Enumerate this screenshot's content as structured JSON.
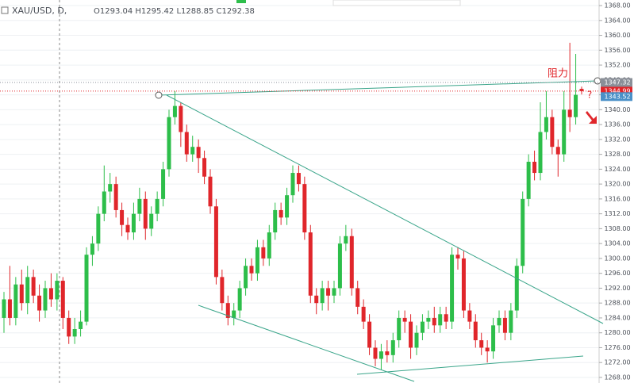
{
  "chart_data": {
    "type": "candlestick",
    "header": {
      "symbol": "XAU/USD, D,",
      "ohlc": "O1293.04 H1295.42 L1288.85 C1292.38"
    },
    "annotations": [
      "阻力",
      "?"
    ],
    "up_color": "#2dbe4a",
    "down_color": "#e0262b",
    "ylim": [
      1266.5,
      1369.5
    ],
    "yticks": [
      {
        "value": 1268,
        "label": "1268.00"
      },
      {
        "value": 1272,
        "label": "1272.00"
      },
      {
        "value": 1276,
        "label": "1276.00"
      },
      {
        "value": 1280,
        "label": "1280.00"
      },
      {
        "value": 1284,
        "label": "1284.00"
      },
      {
        "value": 1288,
        "label": "1288.00"
      },
      {
        "value": 1292,
        "label": "1292.00"
      },
      {
        "value": 1296,
        "label": "1296.00"
      },
      {
        "value": 1300,
        "label": "1300.00"
      },
      {
        "value": 1304,
        "label": "1304.00"
      },
      {
        "value": 1308,
        "label": "1308.00"
      },
      {
        "value": 1312,
        "label": "1312.00"
      },
      {
        "value": 1316,
        "label": "1316.00"
      },
      {
        "value": 1320,
        "label": "1320.00"
      },
      {
        "value": 1324,
        "label": "1324.00"
      },
      {
        "value": 1328,
        "label": "1328.00"
      },
      {
        "value": 1332,
        "label": "1332.00"
      },
      {
        "value": 1336,
        "label": "1336.00"
      },
      {
        "value": 1340,
        "label": "1340.00"
      },
      {
        "value": 1344,
        "label": "1344.00"
      },
      {
        "value": 1348,
        "label": "1348.00"
      },
      {
        "value": 1352,
        "label": "1352.00"
      },
      {
        "value": 1356,
        "label": "1356.00"
      },
      {
        "value": 1360,
        "label": "1360.00"
      },
      {
        "value": 1364,
        "label": "1364.00"
      },
      {
        "value": 1368,
        "label": "1368.00"
      }
    ],
    "grid": true,
    "price_labels": [
      {
        "value": 1347.32,
        "color": "#8a8f98",
        "line": "dotted"
      },
      {
        "value": 1344.99,
        "color": "#e0262b",
        "line": "dotted"
      },
      {
        "value": 1343.52,
        "color": "#4a90c8"
      }
    ],
    "ohlc": [
      [
        1284,
        1291,
        1280,
        1289
      ],
      [
        1289,
        1298,
        1282,
        1284
      ],
      [
        1284,
        1295,
        1282,
        1293
      ],
      [
        1293,
        1297,
        1286,
        1288
      ],
      [
        1288,
        1298,
        1285,
        1295
      ],
      [
        1295,
        1297,
        1288,
        1290
      ],
      [
        1290,
        1293,
        1283,
        1286
      ],
      [
        1286,
        1294,
        1284,
        1292
      ],
      [
        1292,
        1296,
        1287,
        1289
      ],
      [
        1289,
        1296,
        1286,
        1294
      ],
      [
        1294,
        1295,
        1281,
        1284
      ],
      [
        1284,
        1286,
        1277,
        1279
      ],
      [
        1279,
        1284,
        1277,
        1281
      ],
      [
        1281,
        1286,
        1279,
        1283
      ],
      [
        1283,
        1303,
        1282,
        1301
      ],
      [
        1301,
        1306,
        1298,
        1304
      ],
      [
        1304,
        1314,
        1302,
        1312
      ],
      [
        1312,
        1325,
        1310,
        1318
      ],
      [
        1318,
        1323,
        1315,
        1320
      ],
      [
        1320,
        1322,
        1311,
        1313
      ],
      [
        1313,
        1315,
        1306,
        1309
      ],
      [
        1309,
        1311,
        1305,
        1307
      ],
      [
        1307,
        1315,
        1305,
        1312
      ],
      [
        1312,
        1319,
        1310,
        1316
      ],
      [
        1316,
        1318,
        1305,
        1308
      ],
      [
        1308,
        1314,
        1306,
        1312
      ],
      [
        1312,
        1318,
        1310,
        1316
      ],
      [
        1316,
        1326,
        1314,
        1324
      ],
      [
        1324,
        1340,
        1322,
        1338
      ],
      [
        1338,
        1345,
        1336,
        1341
      ],
      [
        1341,
        1342,
        1330,
        1334
      ],
      [
        1334,
        1336,
        1326,
        1328
      ],
      [
        1328,
        1333,
        1326,
        1330
      ],
      [
        1330,
        1332,
        1323,
        1327
      ],
      [
        1327,
        1329,
        1320,
        1322
      ],
      [
        1322,
        1324,
        1312,
        1314
      ],
      [
        1314,
        1316,
        1293,
        1295
      ],
      [
        1295,
        1297,
        1286,
        1288
      ],
      [
        1288,
        1290,
        1282,
        1284
      ],
      [
        1284,
        1288,
        1282,
        1286
      ],
      [
        1286,
        1294,
        1284,
        1292
      ],
      [
        1292,
        1300,
        1290,
        1298
      ],
      [
        1298,
        1300,
        1294,
        1296
      ],
      [
        1296,
        1305,
        1294,
        1303
      ],
      [
        1303,
        1305,
        1298,
        1300
      ],
      [
        1300,
        1309,
        1298,
        1307
      ],
      [
        1307,
        1315,
        1305,
        1313
      ],
      [
        1313,
        1315,
        1309,
        1311
      ],
      [
        1311,
        1319,
        1309,
        1317
      ],
      [
        1317,
        1325,
        1315,
        1323
      ],
      [
        1323,
        1325,
        1318,
        1320
      ],
      [
        1320,
        1322,
        1305,
        1307
      ],
      [
        1307,
        1309,
        1288,
        1290
      ],
      [
        1290,
        1292,
        1285,
        1288
      ],
      [
        1288,
        1294,
        1286,
        1292
      ],
      [
        1292,
        1294,
        1286,
        1290
      ],
      [
        1290,
        1294,
        1288,
        1292
      ],
      [
        1292,
        1306,
        1290,
        1304
      ],
      [
        1304,
        1309,
        1302,
        1306
      ],
      [
        1306,
        1308,
        1290,
        1292
      ],
      [
        1292,
        1294,
        1285,
        1287
      ],
      [
        1287,
        1289,
        1281,
        1283
      ],
      [
        1283,
        1285,
        1274,
        1276
      ],
      [
        1276,
        1278,
        1271,
        1273
      ],
      [
        1273,
        1277,
        1270,
        1275
      ],
      [
        1275,
        1278,
        1272,
        1274
      ],
      [
        1274,
        1280,
        1272,
        1278
      ],
      [
        1278,
        1286,
        1276,
        1284
      ],
      [
        1284,
        1286,
        1280,
        1283
      ],
      [
        1283,
        1285,
        1273,
        1276
      ],
      [
        1276,
        1282,
        1274,
        1280
      ],
      [
        1280,
        1285,
        1278,
        1283
      ],
      [
        1283,
        1286,
        1281,
        1284
      ],
      [
        1284,
        1287,
        1280,
        1282
      ],
      [
        1282,
        1287,
        1280,
        1285
      ],
      [
        1285,
        1287,
        1281,
        1283
      ],
      [
        1283,
        1303,
        1281,
        1301
      ],
      [
        1301,
        1303,
        1297,
        1300
      ],
      [
        1300,
        1302,
        1284,
        1286
      ],
      [
        1286,
        1288,
        1281,
        1283
      ],
      [
        1283,
        1285,
        1276,
        1278
      ],
      [
        1278,
        1280,
        1274,
        1276
      ],
      [
        1276,
        1278,
        1272,
        1275
      ],
      [
        1275,
        1284,
        1273,
        1282
      ],
      [
        1282,
        1286,
        1280,
        1284
      ],
      [
        1284,
        1286,
        1278,
        1280
      ],
      [
        1280,
        1288,
        1278,
        1286
      ],
      [
        1286,
        1300,
        1284,
        1298
      ],
      [
        1298,
        1318,
        1296,
        1316
      ],
      [
        1316,
        1328,
        1314,
        1326
      ],
      [
        1326,
        1329,
        1321,
        1323
      ],
      [
        1323,
        1342,
        1321,
        1334
      ],
      [
        1334,
        1345,
        1332,
        1338
      ],
      [
        1338,
        1340,
        1328,
        1330
      ],
      [
        1330,
        1332,
        1322,
        1328
      ],
      [
        1328,
        1345,
        1326,
        1340
      ],
      [
        1340,
        1358,
        1334,
        1338
      ],
      [
        1338,
        1355,
        1336,
        1344
      ],
      [
        1345.6,
        1346.2,
        1344.1,
        1344.99
      ]
    ]
  }
}
